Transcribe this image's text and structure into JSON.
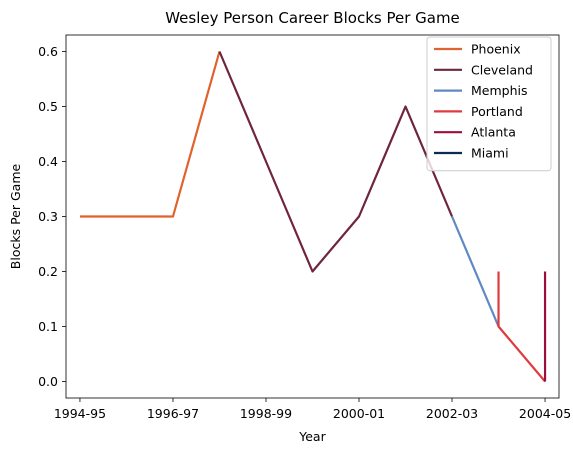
{
  "chart_data": {
    "type": "line",
    "title": "Wesley Person Career Blocks Per Game",
    "xlabel": "Year",
    "ylabel": "Blocks Per Game",
    "x_ticks": [
      "1994-95",
      "1996-97",
      "1998-99",
      "2000-01",
      "2002-03",
      "2004-05"
    ],
    "x_tick_positions": [
      0,
      2,
      4,
      6,
      8,
      10
    ],
    "xlim": [
      -0.3,
      10.3
    ],
    "ylim": [
      -0.03,
      0.63
    ],
    "y_ticks": [
      "0.0",
      "0.1",
      "0.2",
      "0.3",
      "0.4",
      "0.5",
      "0.6"
    ],
    "y_tick_values": [
      0.0,
      0.1,
      0.2,
      0.3,
      0.4,
      0.5,
      0.6
    ],
    "legend_position": "top-right",
    "grid": false,
    "series": [
      {
        "name": "Phoenix",
        "color": "#e0622d",
        "x": [
          0,
          1,
          2,
          3
        ],
        "y": [
          0.3,
          0.3,
          0.3,
          0.6
        ]
      },
      {
        "name": "Cleveland",
        "color": "#6f263d",
        "x": [
          3,
          4,
          5,
          6,
          7,
          8
        ],
        "y": [
          0.6,
          0.4,
          0.2,
          0.3,
          0.5,
          0.3
        ]
      },
      {
        "name": "Memphis",
        "color": "#5d8ac2",
        "x": [
          8,
          9
        ],
        "y": [
          0.3,
          0.1
        ]
      },
      {
        "name": "Portland",
        "color": "#e03a3e",
        "x": [
          9,
          9,
          10
        ],
        "y": [
          0.2,
          0.1,
          0.0
        ]
      },
      {
        "name": "Atlanta",
        "color": "#9b0f3b",
        "x": [
          10,
          10
        ],
        "y": [
          0.2,
          0.0
        ]
      },
      {
        "name": "Miami",
        "color": "#0d2a52",
        "x": [
          10,
          10
        ],
        "y": [
          0.0,
          0.0
        ]
      }
    ]
  }
}
